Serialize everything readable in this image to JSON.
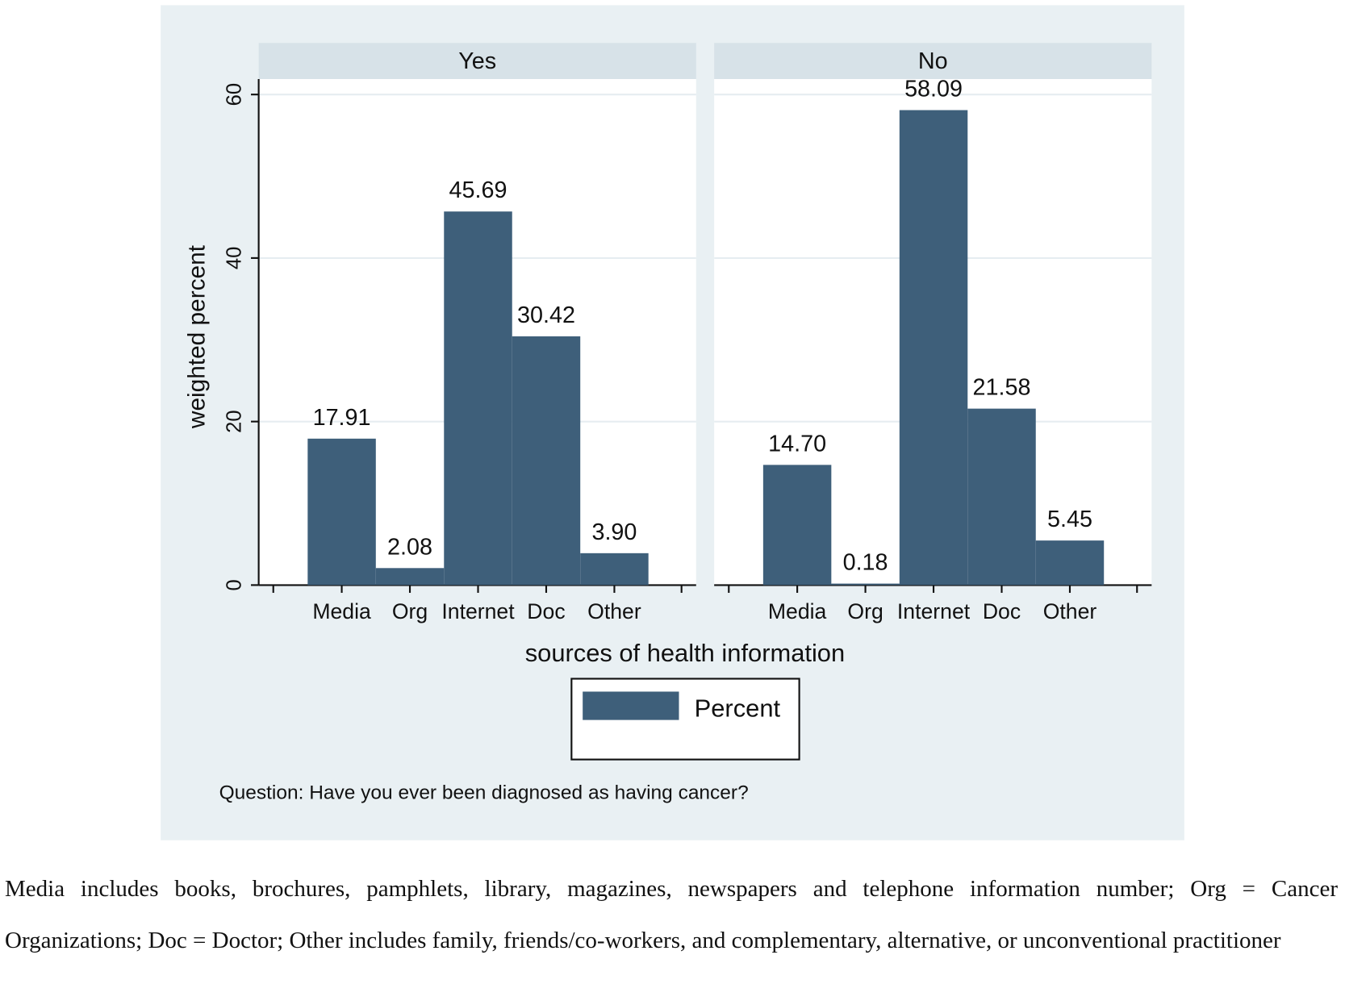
{
  "chart_data": {
    "type": "bar",
    "ylabel": "weighted percent",
    "xlabel": "sources of health information",
    "ylim": [
      0,
      60
    ],
    "yticks": [
      0,
      20,
      40,
      60
    ],
    "grid": true,
    "categories": [
      "Media",
      "Org",
      "Internet",
      "Doc",
      "Other"
    ],
    "panels": [
      {
        "title": "Yes",
        "values": [
          17.91,
          2.08,
          45.69,
          30.42,
          3.9
        ],
        "labels": [
          "17.91",
          "2.08",
          "45.69",
          "30.42",
          "3.90"
        ]
      },
      {
        "title": "No",
        "values": [
          14.7,
          0.18,
          58.09,
          21.58,
          5.45
        ],
        "labels": [
          "14.70",
          "0.18",
          "58.09",
          "21.58",
          "5.45"
        ]
      }
    ],
    "legend": {
      "label": "Percent",
      "placement": "bottom"
    },
    "note": "Question: Have you ever been diagnosed as having cancer?",
    "colors": {
      "bar": "#3e5f7a",
      "background": "#e9f0f3",
      "strip": "#d7e2e8"
    }
  },
  "caption": "Media includes books, brochures, pamphlets, library, magazines, newspapers and telephone information number; Org = Cancer Organizations; Doc = Doctor; Other includes family, friends/co-workers, and complementary, alternative, or unconventional practitioner"
}
